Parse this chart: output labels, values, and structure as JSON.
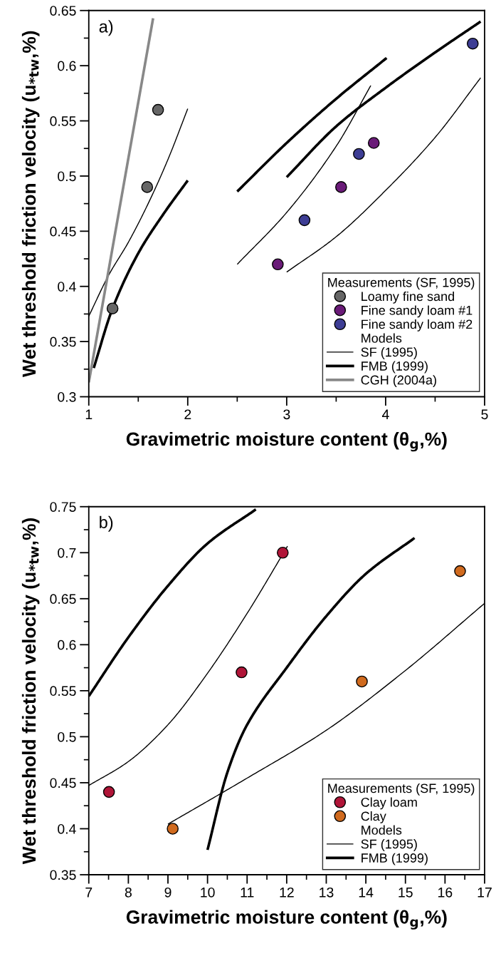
{
  "chart_data": [
    {
      "type": "scatter",
      "xlabel": "Gravimetric moisture content (θ$_{g}$,%)",
      "ylabel": "Wet threshold friction velocity (u$_{*tw}$,%)",
      "legend_title": "Measurements (SF, 1995)",
      "annotations": [
        "a)",
        "Models"
      ],
      "xlim": [
        1,
        5
      ],
      "xticks": [
        1,
        2,
        3,
        4,
        5
      ],
      "ylim": [
        0.3,
        0.65
      ],
      "yticks": [
        0.3,
        0.35,
        0.4,
        0.45,
        0.5,
        0.55,
        0.6,
        0.65
      ],
      "legend": "bottom right",
      "grid": false,
      "series": [
        {
          "name": "Loamy fine sand",
          "color": "#666666",
          "marker": "circle",
          "x": [
            1.24,
            1.59,
            1.7
          ],
          "values": [
            0.38,
            0.49,
            0.56
          ]
        },
        {
          "name": "Fine sandy loam #1",
          "color": "#6a1b78",
          "marker": "circle",
          "x": [
            2.91,
            3.55,
            3.88
          ],
          "values": [
            0.42,
            0.49,
            0.53
          ]
        },
        {
          "name": "Fine sandy loam #2",
          "color": "#3d3d94",
          "marker": "circle",
          "x": [
            3.18,
            3.73,
            4.88
          ],
          "values": [
            0.46,
            0.52,
            0.62
          ]
        },
        {
          "type": "line",
          "name": "SF (1995)",
          "color": "#000000",
          "x": [
            1,
            1.2,
            1.4,
            1.6,
            1.8,
            2
          ],
          "values": [
            0.373,
            0.41,
            0.44,
            0.475,
            0.515,
            0.561
          ]
        },
        {
          "type": "line",
          "color": "#000000",
          "x": [
            2.5,
            3,
            3.5,
            3.85
          ],
          "values": [
            0.42,
            0.467,
            0.527,
            0.582
          ]
        },
        {
          "type": "line",
          "color": "#000000",
          "x": [
            3,
            3.5,
            4,
            4.5,
            4.96
          ],
          "values": [
            0.413,
            0.445,
            0.487,
            0.535,
            0.589
          ]
        },
        {
          "type": "line",
          "name": "FMB (1999)",
          "color": "#000000",
          "x": [
            1.05,
            1.24,
            1.5,
            1.75,
            2
          ],
          "values": [
            0.326,
            0.38,
            0.43,
            0.465,
            0.496
          ]
        },
        {
          "type": "line",
          "color": "#000000",
          "x": [
            2.5,
            3,
            3.5,
            4.01
          ],
          "values": [
            0.486,
            0.53,
            0.57,
            0.607
          ]
        },
        {
          "type": "line",
          "color": "#000000",
          "x": [
            3,
            3.5,
            4,
            4.5,
            4.96
          ],
          "values": [
            0.499,
            0.545,
            0.58,
            0.612,
            0.64
          ]
        },
        {
          "type": "line",
          "name": "CGH (2004a)",
          "color": "#888888",
          "x": [
            1,
            1.65
          ],
          "values": [
            0.313,
            0.643
          ]
        }
      ]
    },
    {
      "type": "scatter",
      "xlabel": "Gravimetric moisture content (θ$_{g}$,%)",
      "ylabel": "Wet threshold friction velocity (u$_{*tw}$,%)",
      "legend_title": "Measurements (SF, 1995)",
      "annotations": [
        "b)",
        "Models"
      ],
      "xlim": [
        7,
        17
      ],
      "xticks": [
        7,
        8,
        9,
        10,
        11,
        12,
        13,
        14,
        15,
        16,
        17
      ],
      "ylim": [
        0.35,
        0.75
      ],
      "yticks": [
        0.35,
        0.4,
        0.45,
        0.5,
        0.55,
        0.6,
        0.65,
        0.7,
        0.75
      ],
      "legend": "bottom right",
      "grid": false,
      "series": [
        {
          "name": "Clay loam",
          "color": "#b01538",
          "marker": "circle",
          "x": [
            7.51,
            10.86,
            11.9
          ],
          "values": [
            0.44,
            0.57,
            0.7
          ]
        },
        {
          "name": "Clay",
          "color": "#d06a1e",
          "marker": "circle",
          "x": [
            9.12,
            13.9,
            16.38
          ],
          "values": [
            0.4,
            0.56,
            0.68
          ]
        },
        {
          "type": "line",
          "name": "SF (1995)",
          "color": "#000000",
          "x": [
            7,
            8,
            9,
            10,
            11,
            12.02
          ],
          "values": [
            0.447,
            0.473,
            0.513,
            0.569,
            0.634,
            0.707
          ]
        },
        {
          "type": "line",
          "color": "#000000",
          "x": [
            9,
            11,
            13,
            15,
            17
          ],
          "values": [
            0.405,
            0.455,
            0.507,
            0.572,
            0.645
          ]
        },
        {
          "type": "line",
          "name": "FMB (1999)",
          "color": "#000000",
          "x": [
            7,
            8,
            9,
            10,
            11.22
          ],
          "values": [
            0.544,
            0.608,
            0.664,
            0.71,
            0.747
          ]
        },
        {
          "type": "line",
          "color": "#000000",
          "x": [
            10,
            10.5,
            11,
            12,
            13,
            14,
            15.23
          ],
          "values": [
            0.377,
            0.461,
            0.513,
            0.575,
            0.631,
            0.677,
            0.716
          ]
        }
      ]
    }
  ]
}
